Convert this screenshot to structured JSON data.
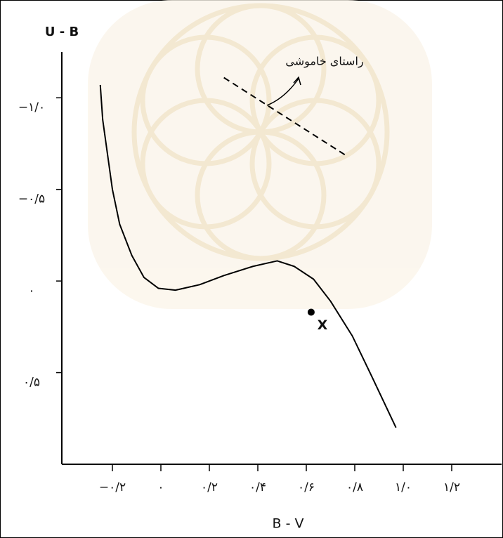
{
  "chart_data": {
    "type": "line",
    "x_label": "B - V",
    "y_label": "U - B",
    "x": [
      -0.25,
      -0.24,
      -0.22,
      -0.2,
      -0.17,
      -0.12,
      -0.07,
      -0.01,
      0.06,
      0.16,
      0.26,
      0.38,
      0.48,
      0.55,
      0.63,
      0.7,
      0.79,
      0.87,
      0.97
    ],
    "values": [
      -1.07,
      -0.88,
      -0.69,
      -0.5,
      -0.31,
      -0.14,
      -0.02,
      0.04,
      0.05,
      0.02,
      -0.03,
      -0.08,
      -0.11,
      -0.08,
      -0.01,
      0.11,
      0.3,
      0.52,
      0.8
    ],
    "color": "#000000",
    "points": [
      {
        "label": "X",
        "x": 0.62,
        "y": 0.17
      }
    ],
    "reddening_line": {
      "label": "راستای خاموشی",
      "x": [
        0.26,
        0.77
      ],
      "y": [
        -1.11,
        -0.68
      ]
    },
    "xlim": [
      -0.4,
      1.4
    ],
    "ylim": [
      -1.25,
      1.0
    ],
    "y_inverted": true,
    "xticks": [
      {
        "value": -0.2,
        "label": "−۰/۲"
      },
      {
        "value": 0,
        "label": "۰"
      },
      {
        "value": 0.2,
        "label": "۰/۲"
      },
      {
        "value": 0.4,
        "label": "۰/۴"
      },
      {
        "value": 0.6,
        "label": "۰/۶"
      },
      {
        "value": 0.8,
        "label": "۰/۸"
      },
      {
        "value": 1.0,
        "label": "۱/۰"
      },
      {
        "value": 1.2,
        "label": "۱/۲"
      }
    ],
    "yticks": [
      {
        "value": -1.0,
        "label": "−۱/۰"
      },
      {
        "value": -0.5,
        "label": "−۰/۵"
      },
      {
        "value": 0,
        "label": "۰"
      },
      {
        "value": 0.5,
        "label": "۰/۵"
      }
    ],
    "grid": false
  }
}
